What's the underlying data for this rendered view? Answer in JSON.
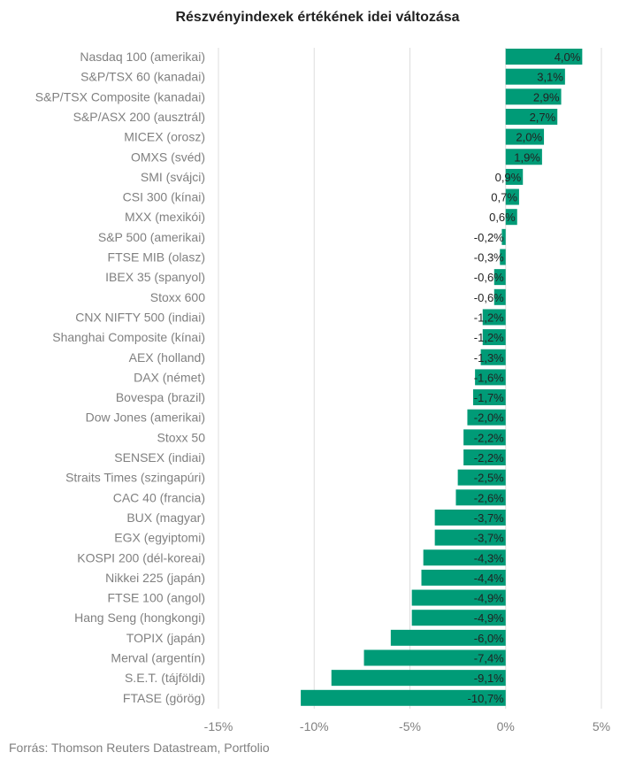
{
  "chart_data": {
    "type": "bar",
    "orientation": "horizontal",
    "title": "Részvényindexek értékének idei változása",
    "categories": [
      "Nasdaq 100 (amerikai)",
      "S&P/TSX 60 (kanadai)",
      "S&P/TSX Composite (kanadai)",
      "S&P/ASX 200 (ausztrál)",
      "MICEX (orosz)",
      "OMXS (svéd)",
      "SMI (svájci)",
      "CSI 300 (kínai)",
      "MXX (mexikói)",
      "S&P 500 (amerikai)",
      "FTSE MIB (olasz)",
      "IBEX 35 (spanyol)",
      "Stoxx 600",
      "CNX NIFTY 500 (indiai)",
      "Shanghai Composite (kínai)",
      "AEX (holland)",
      "DAX (német)",
      "Bovespa (brazil)",
      "Dow Jones (amerikai)",
      "Stoxx 50",
      "SENSEX (indiai)",
      "Straits Times (szingapúri)",
      "CAC 40 (francia)",
      "BUX (magyar)",
      "EGX (egyiptomi)",
      "KOSPI 200 (dél-koreai)",
      "Nikkei 225 (japán)",
      "FTSE 100 (angol)",
      "Hang Seng (hongkongi)",
      "TOPIX (japán)",
      "Merval (argentín)",
      "S.E.T. (tájföldi)",
      "FTASE (görög)"
    ],
    "values": [
      4.0,
      3.1,
      2.9,
      2.7,
      2.0,
      1.9,
      0.9,
      0.7,
      0.6,
      -0.2,
      -0.3,
      -0.6,
      -0.6,
      -1.2,
      -1.2,
      -1.3,
      -1.6,
      -1.7,
      -2.0,
      -2.2,
      -2.2,
      -2.5,
      -2.6,
      -3.7,
      -3.7,
      -4.3,
      -4.4,
      -4.9,
      -4.9,
      -6.0,
      -7.4,
      -9.1,
      -10.7
    ],
    "value_labels": [
      "4,0%",
      "3,1%",
      "2,9%",
      "2,7%",
      "2,0%",
      "1,9%",
      "0,9%",
      "0,7%",
      "0,6%",
      "-0,2%",
      "-0,3%",
      "-0,6%",
      "-0,6%",
      "-1,2%",
      "-1,2%",
      "-1,3%",
      "-1,6%",
      "-1,7%",
      "-2,0%",
      "-2,2%",
      "-2,2%",
      "-2,5%",
      "-2,6%",
      "-3,7%",
      "-3,7%",
      "-4,3%",
      "-4,4%",
      "-4,9%",
      "-4,9%",
      "-6,0%",
      "-7,4%",
      "-9,1%",
      "-10,7%"
    ],
    "xlim": [
      -15,
      5
    ],
    "xticks": [
      -15,
      -10,
      -5,
      0,
      5
    ],
    "xtick_labels": [
      "-15%",
      "-10%",
      "-5%",
      "0%",
      "5%"
    ],
    "grid": true,
    "bar_color": "#009b77",
    "source": "Forrás: Thomson Reuters Datastream, Portfolio"
  }
}
